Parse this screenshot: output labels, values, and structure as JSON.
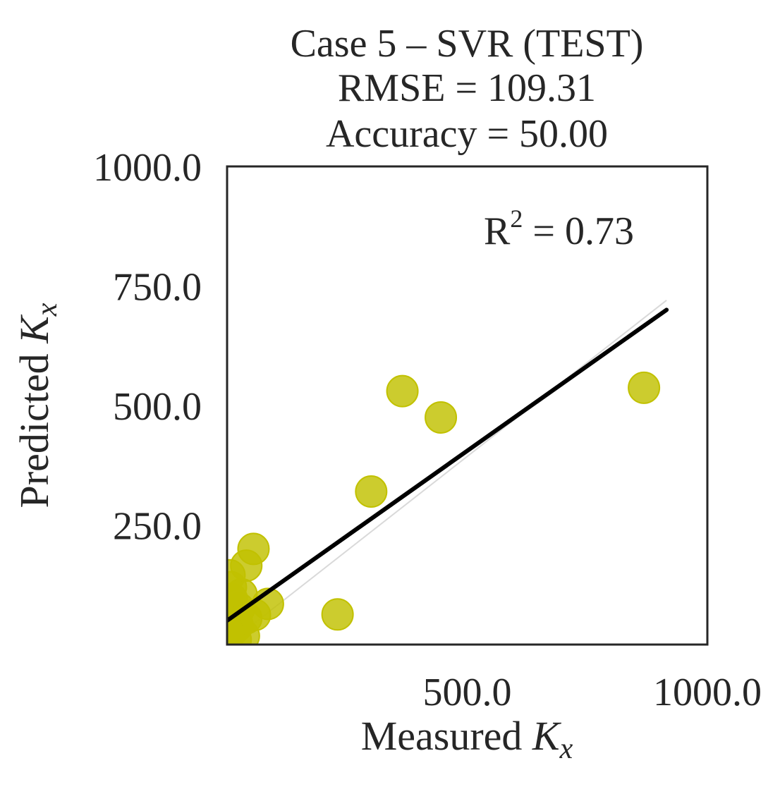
{
  "chart_data": {
    "type": "scatter",
    "title_lines": [
      "Case 5 – SVR (TEST)",
      "RMSE = 109.31",
      "Accuracy = 50.00"
    ],
    "xlabel": {
      "text": "Measured ",
      "var": "K",
      "sub": "x"
    },
    "ylabel": {
      "text": "Predicted ",
      "var": "K",
      "sub": "x"
    },
    "xlim": [
      0,
      1000
    ],
    "ylim": [
      0,
      1000
    ],
    "xticks": [
      500,
      1000
    ],
    "yticks": [
      250,
      500,
      750,
      1000
    ],
    "xtick_labels": [
      "500.0",
      "1000.0"
    ],
    "ytick_labels": [
      "250.0",
      "500.0",
      "750.0",
      "1000.0"
    ],
    "annotation": {
      "base": "R",
      "sup": "2",
      "rest": " = 0.73"
    },
    "point_color": "#c1c100",
    "line_color": "#000000",
    "points": [
      {
        "x": 5,
        "y": 145
      },
      {
        "x": 8,
        "y": 120
      },
      {
        "x": 10,
        "y": 95
      },
      {
        "x": 12,
        "y": 30
      },
      {
        "x": 15,
        "y": 60
      },
      {
        "x": 18,
        "y": 10
      },
      {
        "x": 22,
        "y": 40
      },
      {
        "x": 25,
        "y": 75
      },
      {
        "x": 30,
        "y": 105
      },
      {
        "x": 35,
        "y": 18
      },
      {
        "x": 40,
        "y": 55
      },
      {
        "x": 40,
        "y": 165
      },
      {
        "x": 55,
        "y": 200
      },
      {
        "x": 58,
        "y": 62
      },
      {
        "x": 85,
        "y": 85
      },
      {
        "x": 230,
        "y": 63
      },
      {
        "x": 300,
        "y": 320
      },
      {
        "x": 365,
        "y": 530
      },
      {
        "x": 445,
        "y": 475
      },
      {
        "x": 868,
        "y": 537
      }
    ],
    "fit_line": {
      "x": [
        0,
        915
      ],
      "y": [
        50,
        700
      ]
    },
    "identity_line": {
      "x": [
        0,
        915
      ],
      "y": [
        0,
        720
      ]
    }
  }
}
